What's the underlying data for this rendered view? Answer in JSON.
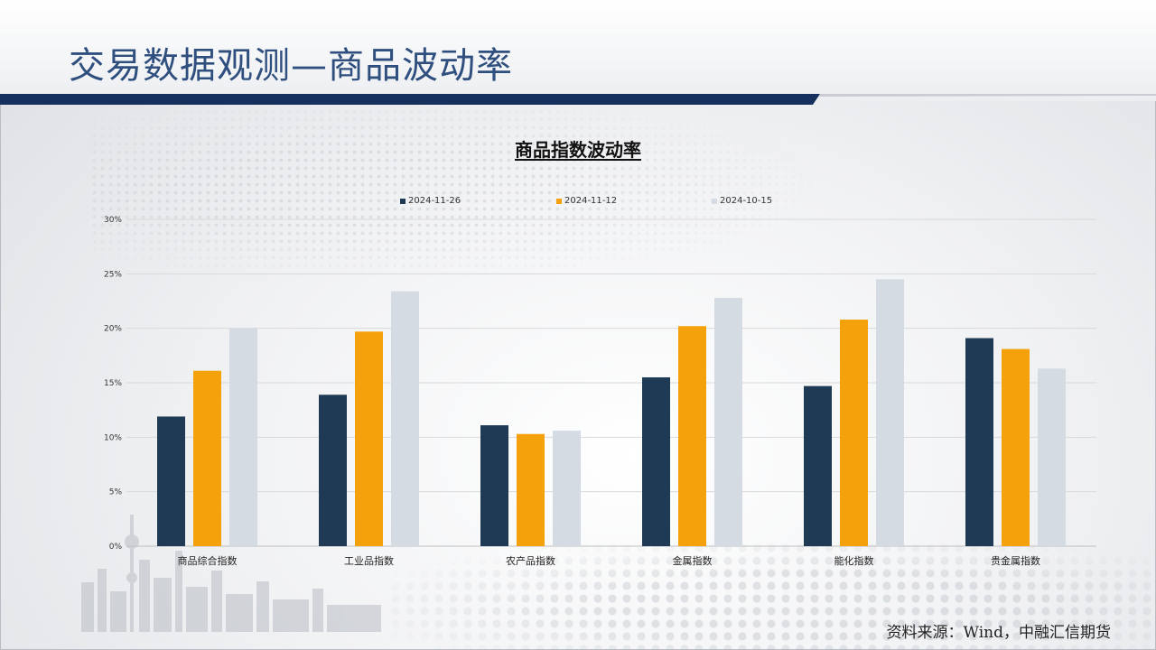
{
  "page": {
    "title": "交易数据观测—商品波动率",
    "source": "资料来源：Wind，中融汇信期货"
  },
  "colors": {
    "title_text": "#2f4f7f",
    "rule_dark": "#16305e",
    "series_1": "#1f3a55",
    "series_2": "#f5a10c",
    "series_3": "#d5dbe3",
    "gridline": "#d9d9d9",
    "axis_text": "#333333"
  },
  "chart_data": {
    "type": "bar",
    "title": "商品指数波动率",
    "xlabel": "",
    "ylabel": "",
    "ylim": [
      0,
      30
    ],
    "yticks": [
      "0%",
      "5%",
      "10%",
      "15%",
      "20%",
      "25%",
      "30%"
    ],
    "grid": true,
    "legend_position": "top",
    "categories": [
      "商品综合指数",
      "工业品指数",
      "农产品指数",
      "金属指数",
      "能化指数",
      "贵金属指数"
    ],
    "series": [
      {
        "name": "2024-11-26",
        "color": "#1f3a55",
        "values": [
          11.9,
          13.9,
          11.1,
          15.5,
          14.7,
          19.1
        ]
      },
      {
        "name": "2024-11-12",
        "color": "#f5a10c",
        "values": [
          16.1,
          19.7,
          10.3,
          20.2,
          20.8,
          18.1
        ]
      },
      {
        "name": "2024-10-15",
        "color": "#d5dbe3",
        "values": [
          20.0,
          23.4,
          10.6,
          22.8,
          24.5,
          16.3
        ]
      }
    ]
  }
}
